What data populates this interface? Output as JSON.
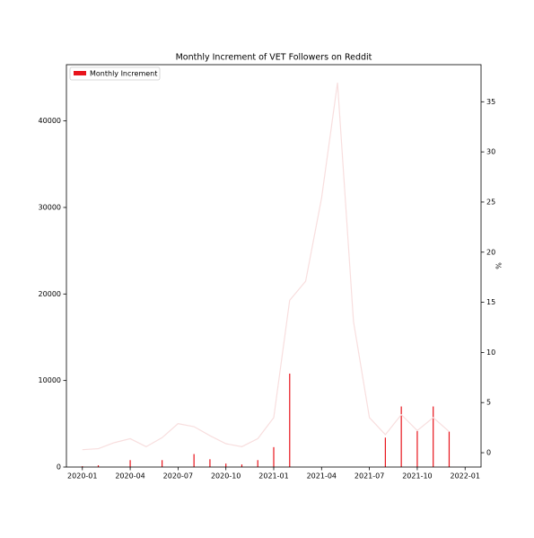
{
  "chart_data": {
    "type": "bar",
    "title": "Monthly Increment of VET Followers on Reddit",
    "y2label": "%",
    "x": [
      "2020-01",
      "2020-02",
      "2020-03",
      "2020-04",
      "2020-05",
      "2020-06",
      "2020-07",
      "2020-08",
      "2020-09",
      "2020-10",
      "2020-11",
      "2020-12",
      "2021-01",
      "2021-02",
      "2021-03",
      "2021-04",
      "2021-05",
      "2021-06",
      "2021-07",
      "2021-08",
      "2021-09",
      "2021-10",
      "2021-11",
      "2021-12"
    ],
    "series": [
      {
        "name": "Monthly Increment",
        "type": "bar",
        "color": "#e8141c",
        "values": [
          100,
          200,
          0,
          800,
          0,
          800,
          0,
          1500,
          900,
          400,
          300,
          800,
          2300,
          10800,
          0,
          0,
          0,
          0,
          0,
          3400,
          7000,
          4200,
          7000,
          4100
        ]
      },
      {
        "type": "line",
        "axis": "y2",
        "color": "#f8dede",
        "values": [
          0.3,
          0.4,
          1.0,
          1.4,
          0.6,
          1.5,
          2.9,
          2.6,
          1.7,
          0.9,
          0.6,
          1.4,
          3.5,
          15.2,
          17.1,
          25.4,
          36.9,
          13.1,
          3.5,
          1.8,
          3.8,
          2.2,
          3.5,
          2.1
        ]
      }
    ],
    "xlim": [
      "2019-12",
      "2022-02"
    ],
    "xticks": [
      "2020-01",
      "2020-04",
      "2020-07",
      "2020-10",
      "2021-01",
      "2021-04",
      "2021-07",
      "2021-10",
      "2022-01"
    ],
    "ylim": [
      0,
      46500
    ],
    "yticks": [
      0,
      10000,
      20000,
      30000,
      40000
    ],
    "y2lim": [
      -1.43,
      38.7
    ],
    "y2ticks": [
      0,
      5,
      10,
      15,
      20,
      25,
      30,
      35
    ],
    "legend": "upper left"
  }
}
